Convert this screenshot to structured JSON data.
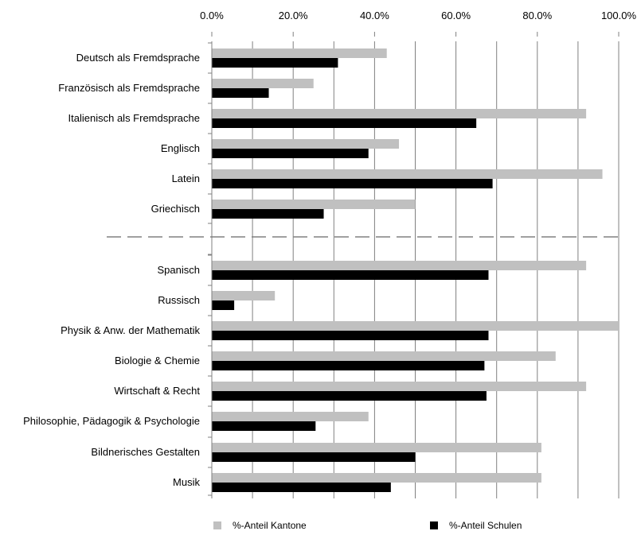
{
  "chart_data": {
    "type": "bar",
    "orientation": "horizontal",
    "xlim": [
      0,
      100
    ],
    "x_ticks": [
      "0.0%",
      "20.0%",
      "40.0%",
      "60.0%",
      "80.0%",
      "100.0%"
    ],
    "x_tick_values": [
      0,
      20,
      40,
      60,
      80,
      100
    ],
    "grid": true,
    "legend_placement": "bottom",
    "divider_after_index": 5,
    "categories": [
      "Deutsch als Fremdsprache",
      "Französisch als Fremdsprache",
      "Italienisch als Fremdsprache",
      "Englisch",
      "Latein",
      "Griechisch",
      "Spanisch",
      "Russisch",
      "Physik & Anw. der Mathematik",
      "Biologie & Chemie",
      "Wirtschaft & Recht",
      "Philosophie, Pädagogik & Psychologie",
      "Bildnerisches Gestalten",
      "Musik"
    ],
    "series": [
      {
        "name": "%-Anteil Kantone",
        "color": "#c0c0c0",
        "values": [
          43,
          25,
          92,
          46,
          96,
          50,
          92,
          15.5,
          100,
          84.5,
          92,
          38.5,
          81,
          81
        ]
      },
      {
        "name": "%-Anteil Schulen",
        "color": "#000000",
        "values": [
          31,
          14,
          65,
          38.5,
          69,
          27.5,
          68,
          5.5,
          68,
          67,
          67.5,
          25.5,
          50,
          44
        ]
      }
    ]
  }
}
